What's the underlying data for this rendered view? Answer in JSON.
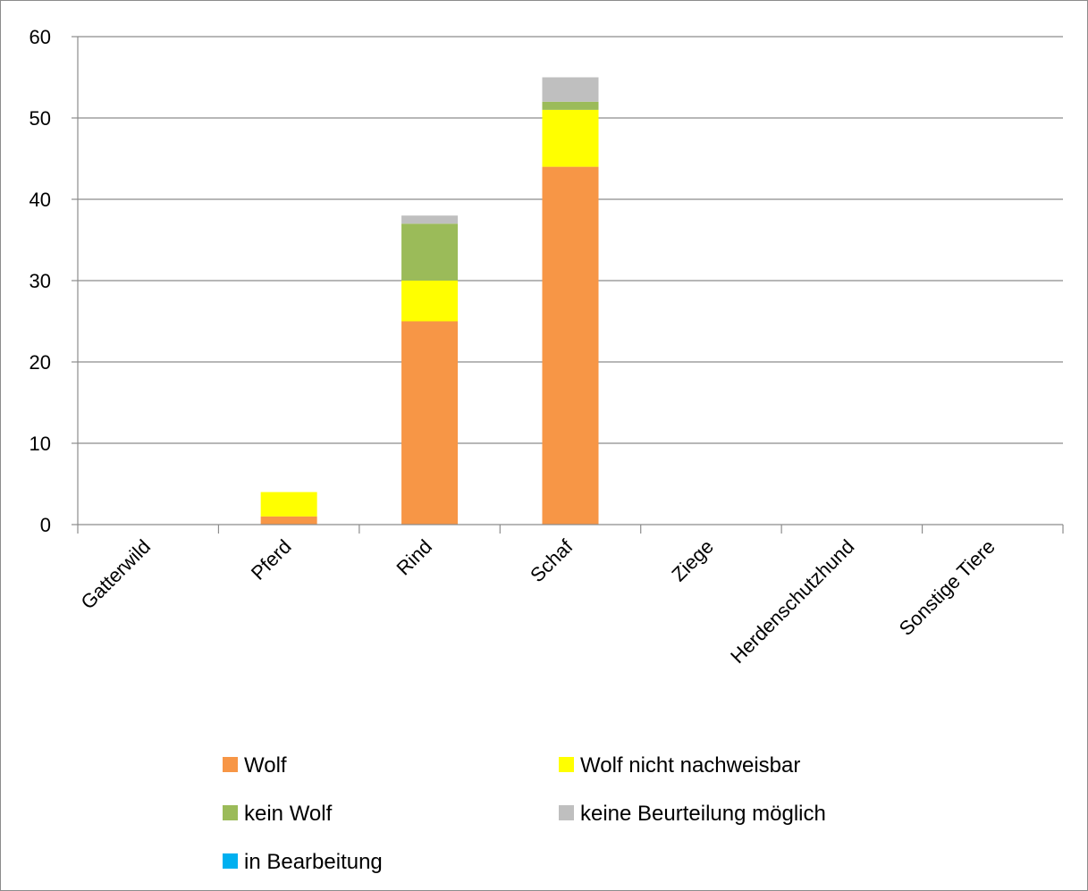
{
  "chart_data": {
    "type": "bar",
    "stacked": true,
    "title": "",
    "xlabel": "",
    "ylabel": "",
    "ylim": [
      0,
      60
    ],
    "yticks": [
      0,
      10,
      20,
      30,
      40,
      50,
      60
    ],
    "grid": true,
    "legend_position": "bottom",
    "categories": [
      "Gatterwild",
      "Pferd",
      "Rind",
      "Schaf",
      "Ziege",
      "Herdenschutzhund",
      "Sonstige Tiere"
    ],
    "series": [
      {
        "name": "Wolf",
        "color": "#f79646",
        "values": [
          0,
          1,
          25,
          44,
          0,
          0,
          0
        ]
      },
      {
        "name": "Wolf nicht nachweisbar",
        "color": "#ffff00",
        "values": [
          0,
          3,
          5,
          7,
          0,
          0,
          0
        ]
      },
      {
        "name": "kein Wolf",
        "color": "#9bbb59",
        "values": [
          0,
          0,
          7,
          1,
          0,
          0,
          0
        ]
      },
      {
        "name": "keine Beurteilung möglich",
        "color": "#bfbfbf",
        "values": [
          0,
          0,
          1,
          3,
          0,
          0,
          0
        ]
      },
      {
        "name": "in Bearbeitung",
        "color": "#00b0f0",
        "values": [
          0,
          0,
          0,
          0,
          0,
          0,
          0
        ]
      }
    ],
    "gridline_color": "#8c8c8c",
    "axis_color": "#8c8c8c"
  }
}
